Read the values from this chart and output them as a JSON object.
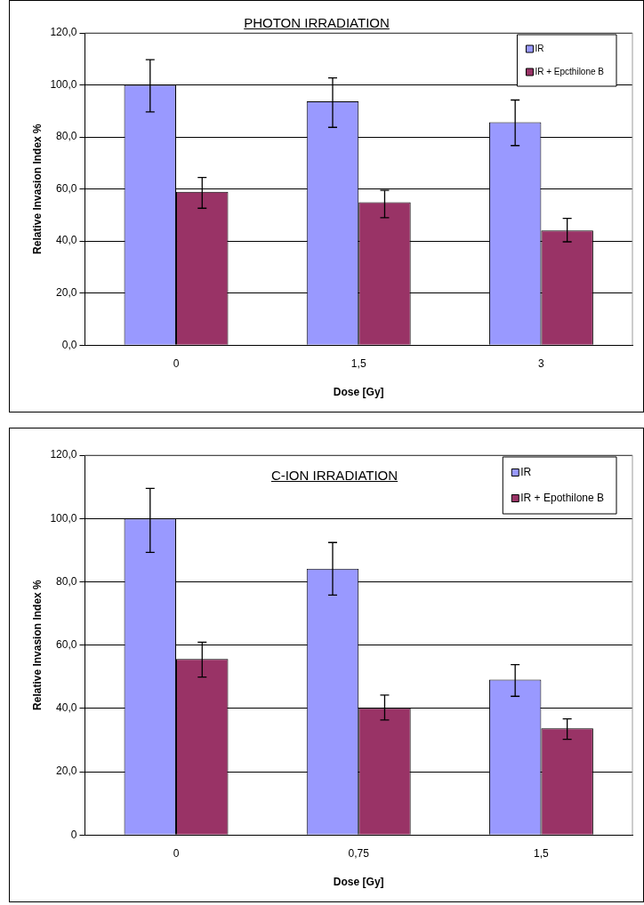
{
  "chart_data": [
    {
      "type": "bar",
      "title": "PHOTON IRRADIATION",
      "xlabel": "Dose [Gy]",
      "ylabel": "Relative Invasion Index %",
      "categories": [
        "0",
        "1,5",
        "3"
      ],
      "series": [
        {
          "name": "IR",
          "color": "#9999ff",
          "values": [
            100,
            93.7,
            85.7
          ],
          "errors": [
            [
              89.6,
              109.7
            ],
            [
              83.7,
              102.7
            ],
            [
              76.7,
              94.2
            ]
          ]
        },
        {
          "name": "IR + Epcthilone B",
          "color": "#993366",
          "values": [
            58.9,
            54.9,
            44.1
          ],
          "errors": [
            [
              52.6,
              64.4
            ],
            [
              49,
              59.5
            ],
            [
              39.7,
              48.7
            ]
          ]
        }
      ],
      "ylim": [
        0,
        120
      ],
      "yticks": [
        {
          "value": 0,
          "label": "0,0"
        },
        {
          "value": 20,
          "label": "20,0"
        },
        {
          "value": 40,
          "label": "40,0"
        },
        {
          "value": 60,
          "label": "60,0"
        },
        {
          "value": 80,
          "label": "80,0"
        },
        {
          "value": 100,
          "label": "100,0"
        },
        {
          "value": 120,
          "label": "120,0"
        }
      ],
      "grid": "y",
      "legend": "top right"
    },
    {
      "type": "bar",
      "title": "C-ION IRRADIATION",
      "xlabel": "Dose [Gy]",
      "ylabel": "Relative Invasion Index %",
      "categories": [
        "0",
        "0,75",
        "1,5"
      ],
      "series": [
        {
          "name": "IR",
          "color": "#9999ff",
          "values": [
            100,
            84.1,
            49.1
          ],
          "errors": [
            [
              89.3,
              109.5
            ],
            [
              75.8,
              92.4
            ],
            [
              43.8,
              53.8
            ]
          ]
        },
        {
          "name": "IR + Epothilone B",
          "color": "#993366",
          "values": [
            55.6,
            40.1,
            33.7
          ],
          "errors": [
            [
              49.9,
              60.9
            ],
            [
              36.3,
              44.2
            ],
            [
              30.2,
              36.7
            ]
          ]
        }
      ],
      "ylim": [
        0,
        120
      ],
      "yticks": [
        0,
        {
          "value": 20,
          "label": "20,0"
        },
        {
          "value": 40,
          "label": "40,0"
        },
        {
          "value": 60,
          "label": "60,0"
        },
        {
          "value": 80,
          "label": "80,0"
        },
        {
          "value": 100,
          "label": "100,0"
        },
        {
          "value": 120,
          "label": "120,0"
        }
      ],
      "grid": "y",
      "legend": "top right"
    }
  ]
}
